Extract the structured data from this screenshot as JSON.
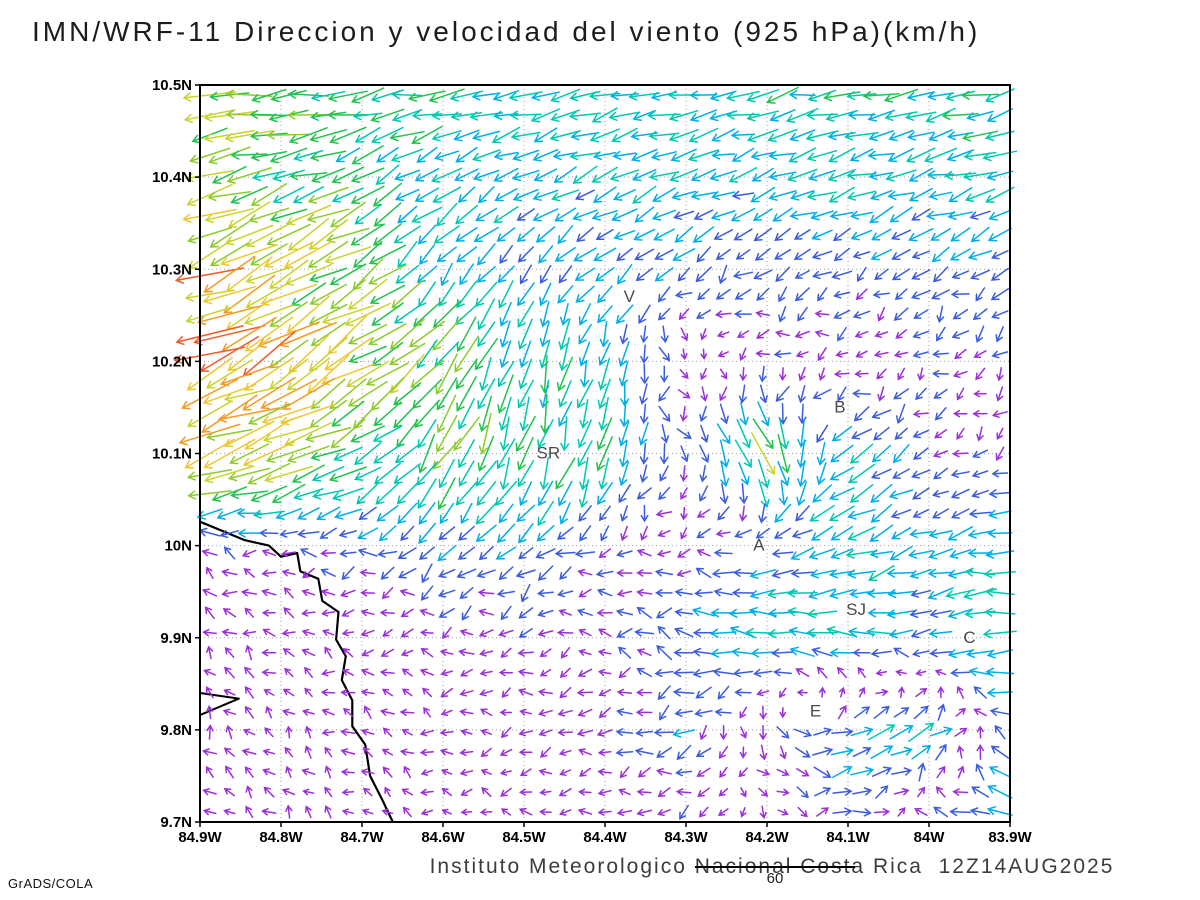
{
  "title": "IMN/WRF-11 Direccion y velocidad del viento (925 hPa)(km/h)",
  "footer": {
    "institute": "Instituto Meteorologico Nacional Costa Rica  12Z14AUG2025",
    "credit": "GrADS/COLA"
  },
  "scale_key": {
    "label": "60"
  },
  "chart_data": {
    "type": "vector_field",
    "title": "IMN/WRF-11 Direccion y velocidad del viento (925 hPa)(km/h)",
    "units": "km/h",
    "pressure_level": "925 hPa",
    "valid_time": "12Z14AUG2025",
    "grid_on": true,
    "reference_vector_kmh": 60,
    "x_tick_labels": [
      "84.9W",
      "84.8W",
      "84.7W",
      "84.6W",
      "84.5W",
      "84.4W",
      "84.3W",
      "84.2W",
      "84.1W",
      "84W",
      "83.9W"
    ],
    "y_tick_labels": [
      "10.5N",
      "10.4N",
      "10.3N",
      "10.2N",
      "10.1N",
      "10N",
      "9.9N",
      "9.8N",
      "9.7N"
    ],
    "lon": [
      -84.9,
      -84.8,
      -84.7,
      -84.6,
      -84.5,
      -84.4,
      -84.3,
      -84.2,
      -84.1,
      -84.0,
      -83.9
    ],
    "lat": [
      10.5,
      10.4,
      10.3,
      10.2,
      10.1,
      10.0,
      9.9,
      9.8,
      9.7
    ],
    "u_kmh": [
      [
        -26,
        -22,
        -18,
        -16,
        -15,
        -14,
        -14,
        -15,
        -16,
        -16,
        -16
      ],
      [
        -24,
        -20,
        -14,
        -12,
        -11,
        -11,
        -12,
        -12,
        -13,
        -14,
        -14
      ],
      [
        -30,
        -26,
        -18,
        -8,
        -7,
        -8,
        -7,
        -6,
        -7,
        -7,
        -7
      ],
      [
        -34,
        -30,
        -22,
        -14,
        -5,
        -3,
        2,
        -5,
        -4,
        -4,
        -4
      ],
      [
        -30,
        -26,
        -16,
        -10,
        -6,
        -4,
        2,
        10,
        -12,
        -5,
        -4
      ],
      [
        -5,
        -6,
        -7,
        -8,
        -8,
        -6,
        -5,
        -9,
        -13,
        -9,
        -16
      ],
      [
        -4,
        -4,
        -4,
        -5,
        -5,
        -5,
        -9,
        -15,
        -13,
        -11,
        -18
      ],
      [
        -3,
        -3,
        -4,
        -4,
        -4,
        -5,
        -8,
        3,
        11,
        13,
        -9
      ],
      [
        -3,
        -3,
        -3,
        -3,
        -4,
        -4,
        -5,
        2,
        8,
        -5,
        -14
      ]
    ],
    "v_kmh": [
      [
        -3,
        -3,
        -3,
        -3,
        -3,
        -3,
        -3,
        -3,
        -3,
        -3,
        -3
      ],
      [
        -6,
        -6,
        -7,
        -7,
        -6,
        -5,
        -5,
        -4,
        -4,
        -4,
        -4
      ],
      [
        -13,
        -14,
        -12,
        -10,
        -8,
        -7,
        -6,
        -4,
        -4,
        -5,
        -5
      ],
      [
        -14,
        -16,
        -14,
        -18,
        -16,
        -14,
        -3,
        -2,
        -2,
        -3,
        -3
      ],
      [
        -10,
        -11,
        -9,
        -18,
        -20,
        -16,
        -6,
        -20,
        -9,
        -4,
        -3
      ],
      [
        2,
        0,
        -3,
        -6,
        -5,
        -3,
        -1,
        -3,
        -6,
        -3,
        -2
      ],
      [
        3,
        2,
        1,
        -1,
        -2,
        0,
        2,
        2,
        1,
        -2,
        0
      ],
      [
        4,
        3,
        2,
        1,
        -1,
        -2,
        -3,
        -5,
        4,
        6,
        3
      ],
      [
        3,
        3,
        2,
        1,
        0,
        -1,
        -2,
        -3,
        3,
        4,
        2
      ]
    ],
    "speed_color_scale": [
      {
        "max_kmh": 6,
        "color": "#9b30d9"
      },
      {
        "max_kmh": 10,
        "color": "#3c5ce0"
      },
      {
        "max_kmh": 14,
        "color": "#00aee8"
      },
      {
        "max_kmh": 18,
        "color": "#00c9b0"
      },
      {
        "max_kmh": 22,
        "color": "#21c24e"
      },
      {
        "max_kmh": 26,
        "color": "#8ccc2a"
      },
      {
        "max_kmh": 30,
        "color": "#c9d32c"
      },
      {
        "max_kmh": 34,
        "color": "#edc82f"
      },
      {
        "max_kmh": 38,
        "color": "#f59a23"
      },
      {
        "max_kmh": 42,
        "color": "#ef5a28"
      },
      {
        "max_kmh": 999,
        "color": "#e8308a"
      }
    ],
    "stations": [
      {
        "label": "V",
        "lon": -84.37,
        "lat": 10.27
      },
      {
        "label": "B",
        "lon": -84.11,
        "lat": 10.15
      },
      {
        "label": "SR",
        "lon": -84.47,
        "lat": 10.1
      },
      {
        "label": "A",
        "lon": -84.21,
        "lat": 10.0
      },
      {
        "label": "SJ",
        "lon": -84.09,
        "lat": 9.93
      },
      {
        "label": "C",
        "lon": -83.95,
        "lat": 9.9
      },
      {
        "label": "E",
        "lon": -84.14,
        "lat": 9.82
      }
    ],
    "coastline": {
      "main": [
        [
          -84.9,
          10.026
        ],
        [
          -84.845,
          10.006
        ],
        [
          -84.815,
          10.0
        ],
        [
          -84.8,
          9.988
        ],
        [
          -84.78,
          9.992
        ],
        [
          -84.776,
          9.972
        ],
        [
          -84.754,
          9.964
        ],
        [
          -84.749,
          9.94
        ],
        [
          -84.729,
          9.928
        ],
        [
          -84.732,
          9.898
        ],
        [
          -84.72,
          9.88
        ],
        [
          -84.725,
          9.854
        ],
        [
          -84.712,
          9.832
        ],
        [
          -84.712,
          9.804
        ],
        [
          -84.696,
          9.784
        ],
        [
          -84.69,
          9.75
        ],
        [
          -84.675,
          9.724
        ],
        [
          -84.662,
          9.7
        ]
      ],
      "spur": [
        [
          -84.9,
          9.84
        ],
        [
          -84.852,
          9.834
        ],
        [
          -84.9,
          9.816
        ]
      ]
    }
  }
}
